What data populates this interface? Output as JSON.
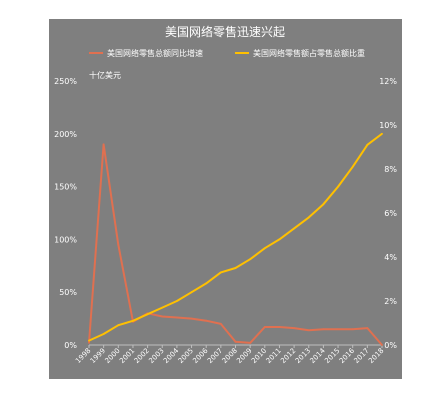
{
  "chart_data": {
    "type": "line",
    "title": "美国网络零售迅速兴起",
    "left_axis_unit_label": "十亿美元",
    "categories": [
      "1998",
      "1999",
      "2000",
      "2001",
      "2002",
      "2003",
      "2004",
      "2005",
      "2006",
      "2007",
      "2008",
      "2009",
      "2010",
      "2011",
      "2012",
      "2013",
      "2014",
      "2015",
      "2016",
      "2017",
      "2018"
    ],
    "left_axis": {
      "min": 0,
      "max": 250,
      "ticks": [
        "0%",
        "50%",
        "100%",
        "150%",
        "200%",
        "250%"
      ]
    },
    "right_axis": {
      "min": 0,
      "max": 12,
      "ticks": [
        "0%",
        "2%",
        "4%",
        "6%",
        "8%",
        "10%",
        "12%"
      ]
    },
    "series": [
      {
        "name": "美国网络零售总额同比增速",
        "axis": "left",
        "color": "#e07050",
        "values": [
          2,
          190,
          95,
          22,
          30,
          27,
          26,
          25,
          23,
          20,
          3,
          2,
          17,
          17,
          16,
          14,
          15,
          15,
          15,
          16,
          0
        ]
      },
      {
        "name": "美国网络零售额占零售总额比重",
        "axis": "right",
        "color": "#ffc000",
        "values": [
          0.2,
          0.5,
          0.9,
          1.1,
          1.4,
          1.7,
          2.0,
          2.4,
          2.8,
          3.3,
          3.5,
          3.9,
          4.4,
          4.8,
          5.3,
          5.8,
          6.4,
          7.2,
          8.1,
          9.1,
          9.6
        ]
      }
    ],
    "grid": false,
    "legend": "top"
  },
  "colors": {
    "background": "#7f7f7f",
    "text": "#ffffff",
    "axis": "#bfbfbf"
  }
}
